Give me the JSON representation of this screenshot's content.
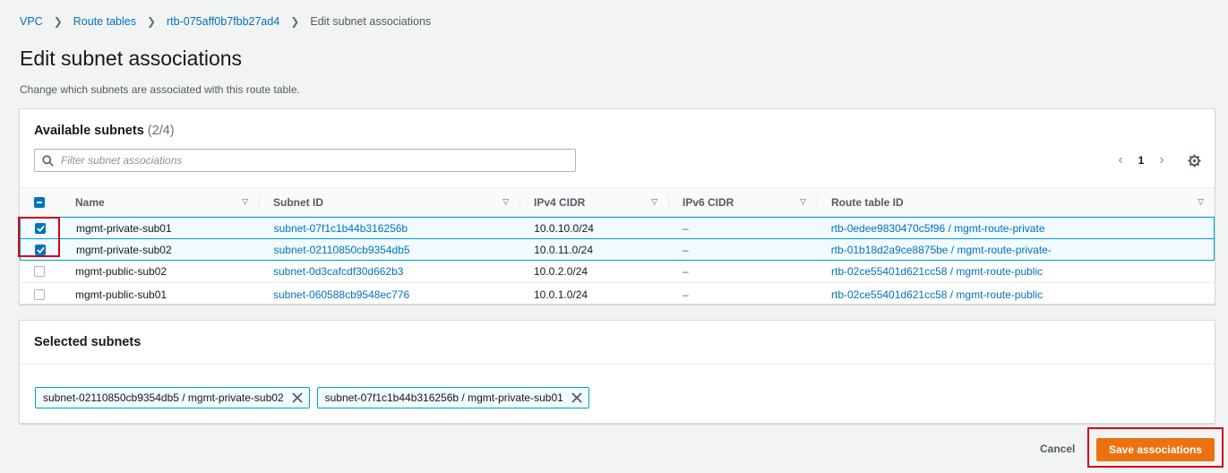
{
  "breadcrumb": {
    "items": [
      "VPC",
      "Route tables",
      "rtb-075aff0b7fbb27ad4"
    ],
    "current": "Edit subnet associations"
  },
  "page": {
    "title": "Edit subnet associations",
    "description": "Change which subnets are associated with this route table."
  },
  "available": {
    "title": "Available subnets",
    "count": "(2/4)",
    "filter_placeholder": "Filter subnet associations",
    "page_number": "1",
    "columns": [
      "Name",
      "Subnet ID",
      "IPv4 CIDR",
      "IPv6 CIDR",
      "Route table ID"
    ],
    "rows": [
      {
        "name": "mgmt-private-sub01",
        "subnet_id": "subnet-07f1c1b44b316256b",
        "ipv4": "10.0.10.0/24",
        "ipv6": "–",
        "route_table": "rtb-0edee9830470c5f96 / mgmt-route-private",
        "checked": true
      },
      {
        "name": "mgmt-private-sub02",
        "subnet_id": "subnet-02110850cb9354db5",
        "ipv4": "10.0.11.0/24",
        "ipv6": "–",
        "route_table": "rtb-01b18d2a9ce8875be / mgmt-route-private-",
        "checked": true
      },
      {
        "name": "mgmt-public-sub02",
        "subnet_id": "subnet-0d3cafcdf30d662b3",
        "ipv4": "10.0.2.0/24",
        "ipv6": "–",
        "route_table": "rtb-02ce55401d621cc58 / mgmt-route-public",
        "checked": false
      },
      {
        "name": "mgmt-public-sub01",
        "subnet_id": "subnet-060588cb9548ec776",
        "ipv4": "10.0.1.0/24",
        "ipv6": "–",
        "route_table": "rtb-02ce55401d621cc58 / mgmt-route-public",
        "checked": false
      }
    ]
  },
  "selected": {
    "title": "Selected subnets",
    "tokens": [
      "subnet-02110850cb9354db5 / mgmt-private-sub02",
      "subnet-07f1c1b44b316256b / mgmt-private-sub01"
    ]
  },
  "footer": {
    "cancel_label": "Cancel",
    "save_label": "Save associations"
  },
  "colors": {
    "link": "#0073bb",
    "primary": "#ec7211",
    "highlight": "#d0021b",
    "selected_border": "#00a1c9"
  }
}
